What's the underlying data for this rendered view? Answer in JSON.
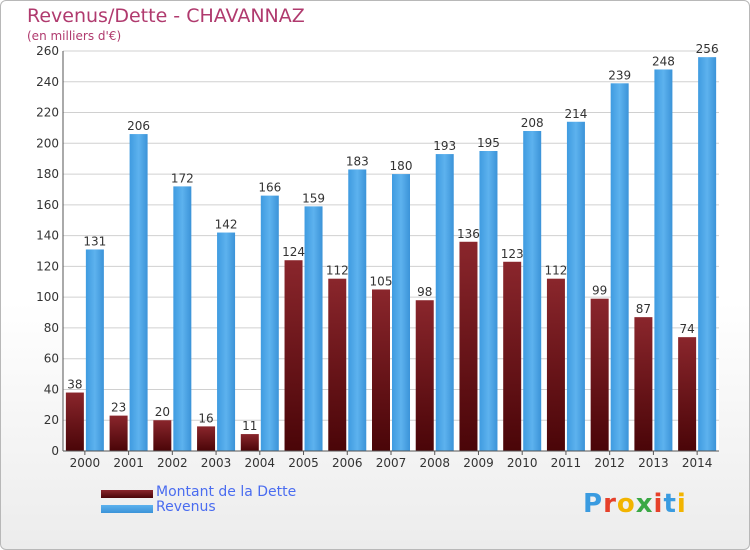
{
  "header": {
    "title": "Revenus/Dette - CHAVANNAZ",
    "subtitle": "(en milliers d'€)"
  },
  "colors": {
    "dette": "#7a1a1f",
    "revenus": "#4fa8e8",
    "title": "#b03a6e",
    "legend_text": "#4a6cf0"
  },
  "legend": {
    "items": [
      {
        "label": "Montant de la Dette",
        "color": "#6b0f14"
      },
      {
        "label": "Revenus",
        "color": "#4fa8e8"
      }
    ]
  },
  "logo": {
    "text": "Proxiti"
  },
  "chart_data": {
    "type": "bar",
    "title": "Revenus/Dette - CHAVANNAZ",
    "subtitle": "(en milliers d'€)",
    "categories": [
      "2000",
      "2001",
      "2002",
      "2003",
      "2004",
      "2005",
      "2006",
      "2007",
      "2008",
      "2009",
      "2010",
      "2011",
      "2012",
      "2013",
      "2014"
    ],
    "series": [
      {
        "name": "Montant de la Dette",
        "values": [
          38,
          23,
          20,
          16,
          11,
          124,
          112,
          105,
          98,
          136,
          123,
          112,
          99,
          87,
          74
        ]
      },
      {
        "name": "Revenus",
        "values": [
          131,
          206,
          172,
          142,
          166,
          159,
          183,
          180,
          193,
          195,
          208,
          214,
          239,
          248,
          256
        ]
      }
    ],
    "yticks": [
      0,
      20,
      40,
      60,
      80,
      100,
      120,
      140,
      160,
      180,
      200,
      220,
      240,
      260
    ],
    "ylim": [
      0,
      260
    ],
    "grid": true,
    "legend_position": "bottom-left"
  }
}
